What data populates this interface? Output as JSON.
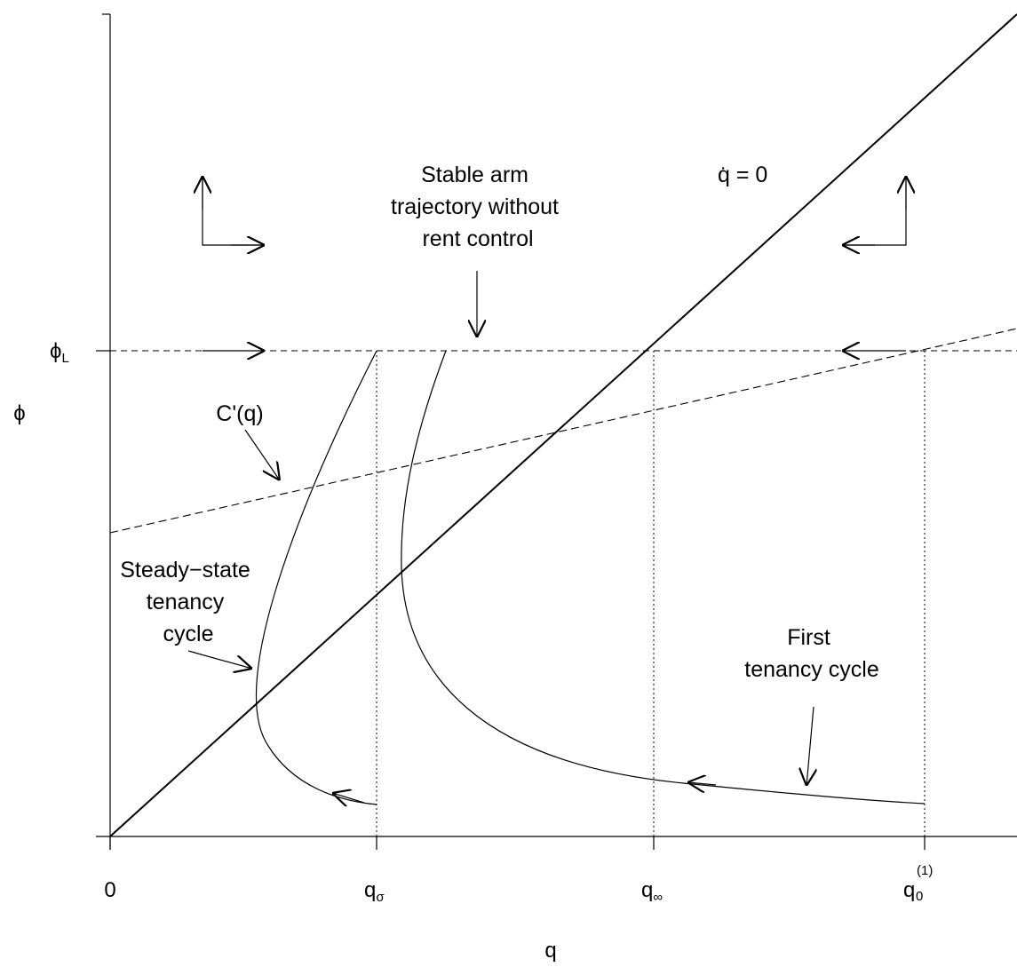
{
  "axes": {
    "x_label": "q",
    "y_label": "ϕ",
    "x_ticks": [
      {
        "base": "0",
        "sub": "",
        "sup": ""
      },
      {
        "base": "q",
        "sub": "σ",
        "sup": ""
      },
      {
        "base": "q",
        "sub": "∞",
        "sup": ""
      },
      {
        "base": "q",
        "sub": "0",
        "sup": "(1)"
      }
    ],
    "y_ticks": [
      {
        "base": "ϕ",
        "sub": "L"
      }
    ]
  },
  "curves": {
    "nullcline_label": "q̇ = 0",
    "cost_label": "C'(q)"
  },
  "annotations": {
    "stable_arm": [
      "Stable arm",
      "trajectory without",
      "rent control"
    ],
    "steady_state": [
      "Steady−state",
      "tenancy",
      "cycle"
    ],
    "first_cycle": [
      "First",
      "tenancy cycle"
    ]
  }
}
